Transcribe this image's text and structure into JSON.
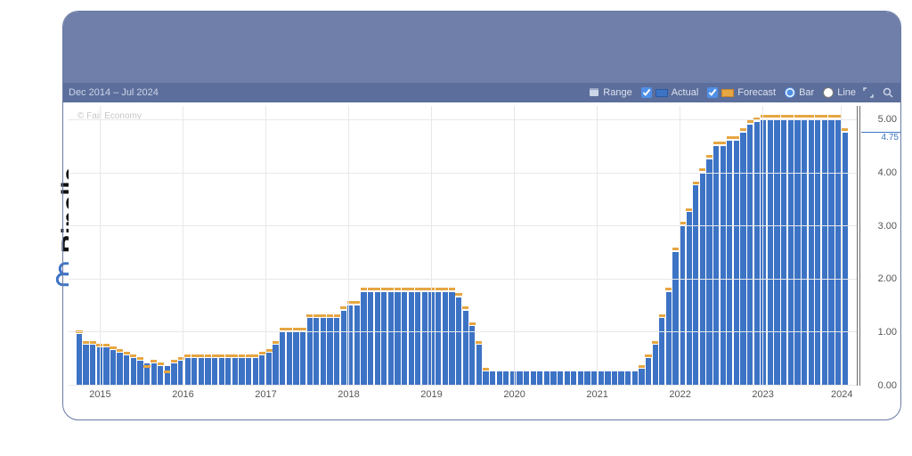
{
  "brand": {
    "name": "Binolla",
    "logo_color": "#3d73c5"
  },
  "toolbar": {
    "date_range": "Dec 2014 – Jul 2024",
    "range_label": "Range",
    "actual_label": "Actual",
    "forecast_label": "Forecast",
    "bar_label": "Bar",
    "line_label": "Line",
    "actual_checked": true,
    "forecast_checked": true,
    "bar_selected": true,
    "line_selected": false
  },
  "chart": {
    "type": "bar",
    "watermark": "© Fair Economy",
    "background_color": "#ffffff",
    "grid_color": "#e8e8e8",
    "actual_color": "#3d73c5",
    "forecast_color": "#e6a642",
    "ylim": [
      0,
      5.25
    ],
    "yticks": [
      0.0,
      1.0,
      2.0,
      3.0,
      4.0,
      5.0
    ],
    "ytick_labels": [
      "0.00",
      "1.00",
      "2.00",
      "3.00",
      "4.00",
      "5.00"
    ],
    "current_value": 4.75,
    "current_value_label": "4.75",
    "x_major_ticks": [
      "2015",
      "2016",
      "2017",
      "2018",
      "2019",
      "2020",
      "2021",
      "2022",
      "2023",
      "2024"
    ],
    "x_major_positions_pct": [
      4,
      14.5,
      25,
      35.5,
      46,
      56.5,
      67,
      77.5,
      88,
      98
    ],
    "bar_width_pct": 0.95,
    "bar_gap_pct": 0.18,
    "values": [
      0.95,
      0.75,
      0.75,
      0.7,
      0.7,
      0.65,
      0.6,
      0.55,
      0.5,
      0.45,
      0.4,
      0.4,
      0.35,
      0.35,
      0.4,
      0.45,
      0.5,
      0.5,
      0.5,
      0.5,
      0.5,
      0.5,
      0.5,
      0.5,
      0.5,
      0.5,
      0.5,
      0.55,
      0.6,
      0.75,
      1.0,
      1.0,
      1.0,
      1.0,
      1.25,
      1.25,
      1.25,
      1.25,
      1.25,
      1.4,
      1.5,
      1.5,
      1.75,
      1.75,
      1.75,
      1.75,
      1.75,
      1.75,
      1.75,
      1.75,
      1.75,
      1.75,
      1.75,
      1.75,
      1.75,
      1.75,
      1.65,
      1.4,
      1.1,
      0.75,
      0.25,
      0.25,
      0.25,
      0.25,
      0.25,
      0.25,
      0.25,
      0.25,
      0.25,
      0.25,
      0.25,
      0.25,
      0.25,
      0.25,
      0.25,
      0.25,
      0.25,
      0.25,
      0.25,
      0.25,
      0.25,
      0.25,
      0.25,
      0.3,
      0.5,
      0.75,
      1.25,
      1.75,
      2.5,
      3.0,
      3.25,
      3.75,
      4.0,
      4.25,
      4.5,
      4.5,
      4.6,
      4.6,
      4.75,
      4.9,
      4.95,
      5.0,
      5.0,
      5.0,
      5.0,
      5.0,
      5.0,
      5.0,
      5.0,
      5.0,
      5.0,
      5.0,
      5.0,
      4.75
    ],
    "forecast_offsets": [
      0.05,
      0.05,
      0.05,
      0.05,
      0.05,
      0.05,
      0.05,
      0.05,
      0.05,
      0.05,
      -0.05,
      0.05,
      0.05,
      -0.1,
      0.05,
      0.05,
      0.05,
      0.05,
      0.05,
      0.05,
      0.05,
      0.05,
      0.05,
      0.05,
      0.05,
      0.05,
      0.05,
      0.05,
      0.05,
      0.05,
      0.05,
      0.05,
      0.05,
      0.05,
      0.05,
      0.05,
      0.05,
      0.05,
      0.05,
      0.05,
      0.05,
      0.05,
      0.05,
      0.05,
      0.05,
      0.05,
      0.05,
      0.05,
      0.05,
      0.05,
      0.05,
      0.05,
      0.05,
      0.05,
      0.05,
      0.05,
      0.05,
      0.05,
      0.05,
      0.05,
      0.05,
      0.0,
      0.0,
      0.0,
      0.0,
      0.0,
      0.0,
      0.0,
      0.0,
      0.0,
      0.0,
      0.0,
      0.0,
      0.0,
      0.0,
      0.0,
      0.0,
      0.0,
      0.0,
      0.0,
      0.0,
      0.0,
      0.0,
      0.05,
      0.05,
      0.05,
      0.05,
      0.05,
      0.05,
      0.05,
      0.05,
      0.05,
      0.05,
      0.05,
      0.05,
      0.05,
      0.05,
      0.05,
      0.05,
      0.05,
      0.05,
      0.05,
      0.05,
      0.05,
      0.05,
      0.05,
      0.05,
      0.05,
      0.05,
      0.05,
      0.05,
      0.05,
      0.05,
      0.05
    ]
  }
}
